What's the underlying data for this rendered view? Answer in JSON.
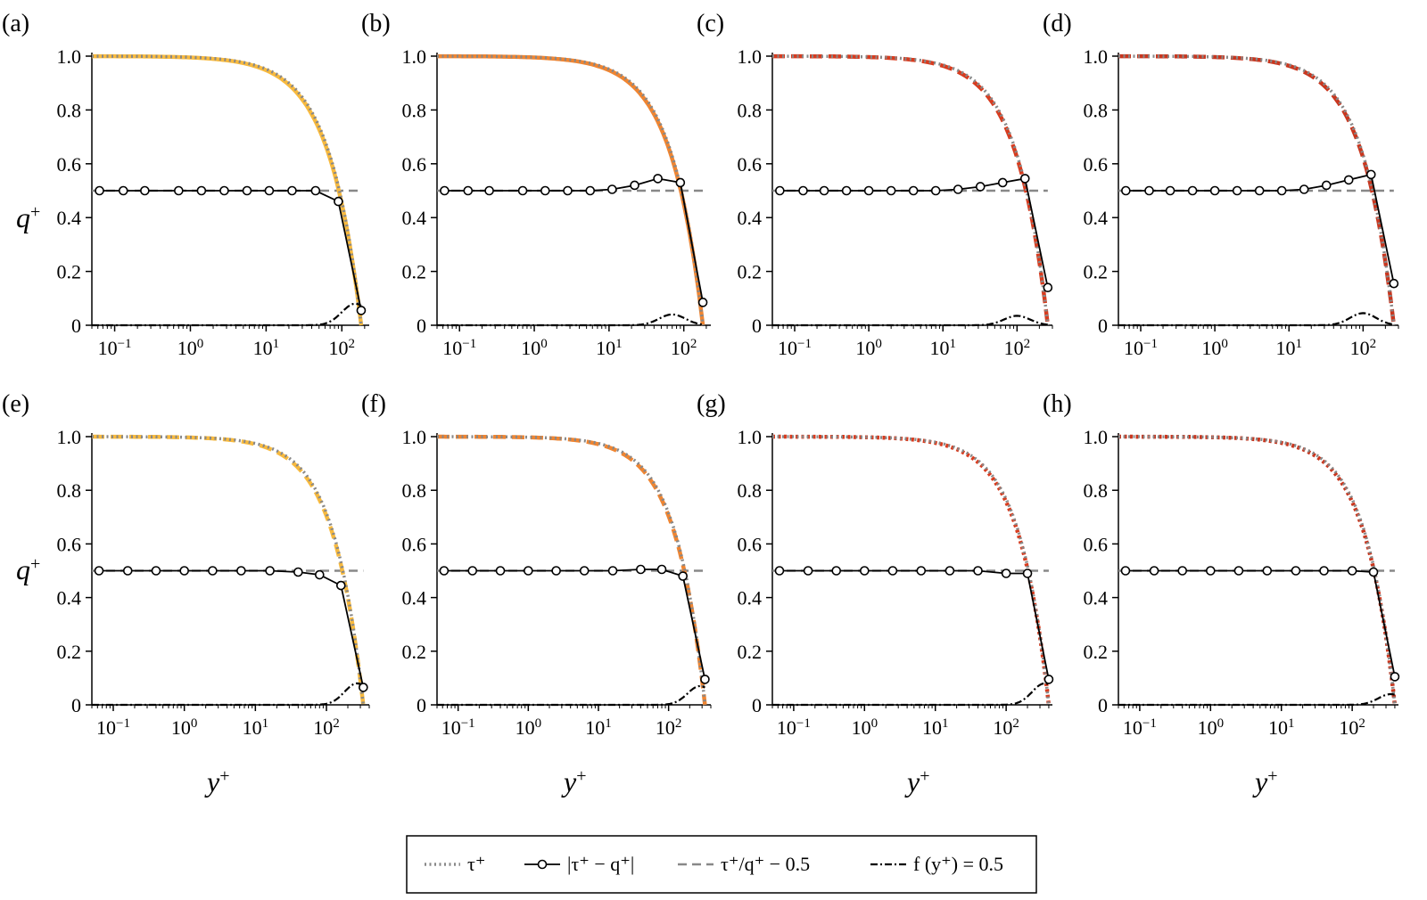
{
  "figure": {
    "ylabel": "q",
    "ylabel_sup": "+",
    "xlabel": "y",
    "xlabel_sup": "+"
  },
  "legend": {
    "entries": [
      {
        "id": "tau",
        "label": "τ⁺",
        "style": "dotted",
        "color": "#888888"
      },
      {
        "id": "absdiff",
        "label": "|τ⁺ − q⁺|",
        "style": "solid-marker",
        "color": "#000000"
      },
      {
        "id": "ratio",
        "label": "τ⁺/q⁺ − 0.5",
        "style": "dashed",
        "color": "#888888"
      },
      {
        "id": "f",
        "label": "f (y⁺) = 0.5",
        "style": "dashdot",
        "color": "#000000"
      }
    ]
  },
  "colors": {
    "yellow": "#F8BA3E",
    "orange": "#F08531",
    "red": "#D83B1E",
    "darkred": "#C9361E",
    "gray": "#888888",
    "black": "#000000"
  },
  "chart_data": [
    {
      "id": "a",
      "label": "(a)",
      "type": "line",
      "xscale": "log",
      "xlim": [
        0.05,
        230
      ],
      "ylim": [
        0,
        1.0
      ],
      "xticks": [
        "10−1",
        "100",
        "101",
        "102"
      ],
      "yticks": [
        "0",
        "0.2",
        "0.4",
        "0.6",
        "0.8",
        "1.0"
      ],
      "retau": 180,
      "q_color": "yellow",
      "q_style": "solid",
      "diff_x": [
        0.063,
        0.13,
        0.25,
        0.7,
        1.4,
        2.8,
        5.6,
        11,
        22,
        45,
        90,
        180
      ],
      "diff_y": [
        0.5,
        0.5,
        0.5,
        0.5,
        0.5,
        0.5,
        0.5,
        0.5,
        0.5,
        0.5,
        0.46,
        0.055
      ],
      "f_bump": 0.08,
      "f_bump_x": 150
    },
    {
      "id": "b",
      "label": "(b)",
      "type": "line",
      "xscale": "log",
      "xlim": [
        0.05,
        230
      ],
      "ylim": [
        0,
        1.0
      ],
      "xticks": [
        "10−1",
        "100",
        "101",
        "102"
      ],
      "yticks": [
        "0",
        "0.2",
        "0.4",
        "0.6",
        "0.8",
        "1.0"
      ],
      "retau": 180,
      "q_color": "orange",
      "q_style": "solid",
      "diff_x": [
        0.063,
        0.13,
        0.25,
        0.7,
        1.4,
        2.8,
        5.6,
        11,
        22,
        45,
        90,
        180
      ],
      "diff_y": [
        0.5,
        0.5,
        0.5,
        0.5,
        0.5,
        0.5,
        0.5,
        0.505,
        0.52,
        0.545,
        0.53,
        0.085
      ],
      "f_bump": 0.04,
      "f_bump_x": 70
    },
    {
      "id": "c",
      "label": "(c)",
      "type": "line",
      "xscale": "log",
      "xlim": [
        0.05,
        300
      ],
      "ylim": [
        0,
        1.0
      ],
      "xticks": [
        "10−1",
        "100",
        "101",
        "102"
      ],
      "yticks": [
        "0",
        "0.2",
        "0.4",
        "0.6",
        "0.8",
        "1.0"
      ],
      "retau": 260,
      "q_color": "red",
      "q_style": "dashed",
      "diff_x": [
        0.063,
        0.13,
        0.25,
        0.5,
        1.0,
        2.0,
        4.0,
        8,
        16,
        32,
        64,
        128,
        260
      ],
      "diff_y": [
        0.5,
        0.5,
        0.5,
        0.5,
        0.5,
        0.5,
        0.5,
        0.5,
        0.505,
        0.515,
        0.53,
        0.545,
        0.14
      ],
      "f_bump": 0.035,
      "f_bump_x": 100
    },
    {
      "id": "d",
      "label": "(d)",
      "type": "line",
      "xscale": "log",
      "xlim": [
        0.05,
        300
      ],
      "ylim": [
        0,
        1.0
      ],
      "xticks": [
        "10−1",
        "100",
        "101",
        "102"
      ],
      "yticks": [
        "0",
        "0.2",
        "0.4",
        "0.6",
        "0.8",
        "1.0"
      ],
      "retau": 260,
      "q_color": "darkred",
      "q_style": "dashed",
      "diff_x": [
        0.063,
        0.13,
        0.25,
        0.5,
        1.0,
        2.0,
        4.0,
        8,
        16,
        32,
        64,
        128,
        260
      ],
      "diff_y": [
        0.5,
        0.5,
        0.5,
        0.5,
        0.5,
        0.5,
        0.5,
        0.5,
        0.505,
        0.52,
        0.54,
        0.56,
        0.155
      ],
      "f_bump": 0.045,
      "f_bump_x": 100
    },
    {
      "id": "e",
      "label": "(e)",
      "type": "line",
      "xscale": "log",
      "xlim": [
        0.05,
        400
      ],
      "ylim": [
        0,
        1.0
      ],
      "xticks": [
        "10−1",
        "100",
        "101",
        "102"
      ],
      "yticks": [
        "0",
        "0.2",
        "0.4",
        "0.6",
        "0.8",
        "1.0"
      ],
      "retau": 330,
      "q_color": "yellow",
      "q_style": "dashed",
      "diff_x": [
        0.063,
        0.16,
        0.4,
        1.0,
        2.5,
        6.3,
        16,
        40,
        80,
        160,
        330
      ],
      "diff_y": [
        0.5,
        0.5,
        0.5,
        0.5,
        0.5,
        0.5,
        0.5,
        0.495,
        0.485,
        0.445,
        0.065
      ],
      "f_bump": 0.08,
      "f_bump_x": 270
    },
    {
      "id": "f",
      "label": "(f)",
      "type": "line",
      "xscale": "log",
      "xlim": [
        0.05,
        400
      ],
      "ylim": [
        0,
        1.0
      ],
      "xticks": [
        "10−1",
        "100",
        "101",
        "102"
      ],
      "yticks": [
        "0",
        "0.2",
        "0.4",
        "0.6",
        "0.8",
        "1.0"
      ],
      "retau": 330,
      "q_color": "orange",
      "q_style": "dashed",
      "diff_x": [
        0.063,
        0.16,
        0.4,
        1.0,
        2.5,
        6.3,
        16,
        40,
        80,
        160,
        330
      ],
      "diff_y": [
        0.5,
        0.5,
        0.5,
        0.5,
        0.5,
        0.5,
        0.5,
        0.505,
        0.505,
        0.48,
        0.095
      ],
      "f_bump": 0.07,
      "f_bump_x": 280
    },
    {
      "id": "g",
      "label": "(g)",
      "type": "line",
      "xscale": "log",
      "xlim": [
        0.05,
        450
      ],
      "ylim": [
        0,
        1.0
      ],
      "xticks": [
        "10−1",
        "100",
        "101",
        "102"
      ],
      "yticks": [
        "0",
        "0.2",
        "0.4",
        "0.6",
        "0.8",
        "1.0"
      ],
      "retau": 400,
      "q_color": "red",
      "q_style": "dotted",
      "diff_x": [
        0.063,
        0.16,
        0.4,
        1.0,
        2.5,
        6.3,
        16,
        40,
        100,
        200,
        400
      ],
      "diff_y": [
        0.5,
        0.5,
        0.5,
        0.5,
        0.5,
        0.5,
        0.5,
        0.5,
        0.49,
        0.49,
        0.095
      ],
      "f_bump": 0.08,
      "f_bump_x": 350
    },
    {
      "id": "h",
      "label": "(h)",
      "type": "line",
      "xscale": "log",
      "xlim": [
        0.05,
        450
      ],
      "ylim": [
        0,
        1.0
      ],
      "xticks": [
        "10−1",
        "100",
        "101",
        "102"
      ],
      "yticks": [
        "0",
        "0.2",
        "0.4",
        "0.6",
        "0.8",
        "1.0"
      ],
      "retau": 400,
      "q_color": "darkred",
      "q_style": "dotted",
      "diff_x": [
        0.063,
        0.16,
        0.4,
        1.0,
        2.5,
        6.3,
        16,
        40,
        100,
        200,
        400
      ],
      "diff_y": [
        0.5,
        0.5,
        0.5,
        0.5,
        0.5,
        0.5,
        0.5,
        0.5,
        0.5,
        0.495,
        0.105
      ],
      "f_bump": 0.04,
      "f_bump_x": 350
    }
  ]
}
